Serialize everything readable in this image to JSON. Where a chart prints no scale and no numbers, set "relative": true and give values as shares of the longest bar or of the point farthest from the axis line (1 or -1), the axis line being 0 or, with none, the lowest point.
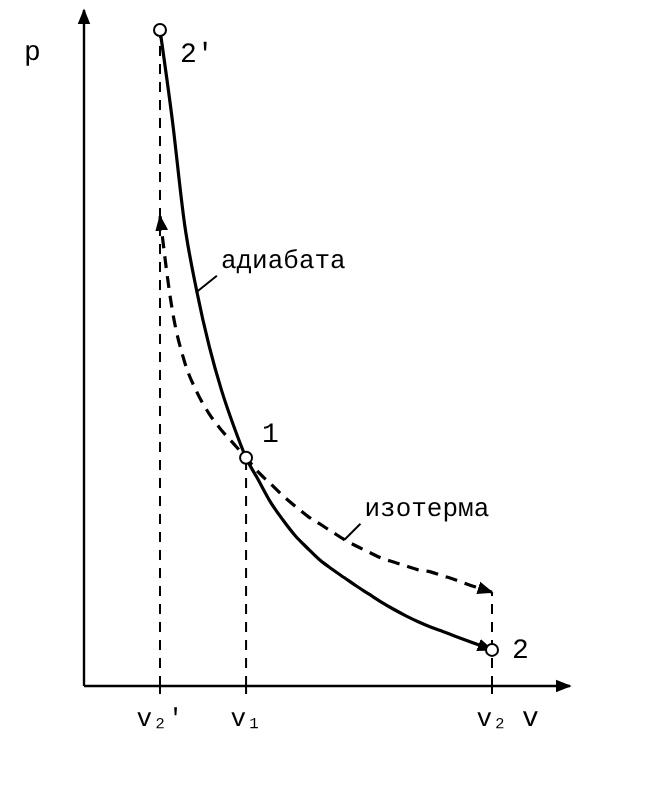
{
  "chart_data": {
    "type": "line",
    "relative": true,
    "xlabel": "v",
    "ylabel": "p",
    "categories": [
      "v₂′",
      null,
      null,
      null,
      null,
      null,
      null,
      "v₁",
      null,
      null,
      null,
      null,
      null,
      null,
      null,
      null,
      null,
      null,
      null,
      null,
      null,
      null,
      null,
      null,
      null,
      null,
      null,
      "v₂"
    ],
    "series": [
      {
        "name": "адиабата",
        "color": "#000000",
        "line_style": "solid",
        "values": [
          1.0,
          0.863,
          0.704,
          0.601,
          0.518,
          0.451,
          0.396,
          0.348,
          0.314,
          0.28,
          0.253,
          0.229,
          0.21,
          0.192,
          0.178,
          0.165,
          0.152,
          0.14,
          0.128,
          0.117,
          0.107,
          0.098,
          0.09,
          0.083,
          0.076,
          0.069,
          0.062,
          0.055
        ]
      },
      {
        "name": "изотерма",
        "color": "#000000",
        "line_style": "dashed",
        "values": [
          0.716,
          0.573,
          0.494,
          0.448,
          0.415,
          0.39,
          0.369,
          0.348,
          0.326,
          0.308,
          0.29,
          0.274,
          0.259,
          0.247,
          0.235,
          0.223,
          0.213,
          0.204,
          0.195,
          0.189,
          0.183,
          0.177,
          0.174,
          0.168,
          0.162,
          0.155,
          0.149,
          0.143
        ]
      }
    ],
    "ref_lines": [
      {
        "axis": "x",
        "value": "v₂′",
        "line_style": "dashed",
        "color": "#000000"
      },
      {
        "axis": "x",
        "value": "v₁",
        "line_style": "dashed",
        "color": "#000000"
      },
      {
        "axis": "x",
        "value": "v₂",
        "line_style": "dashed",
        "color": "#000000"
      }
    ],
    "annotations": [
      {
        "text": "2′",
        "x": "v₂′",
        "y": 1.0
      },
      {
        "text": "1",
        "x": "v₁",
        "y": 0.348
      },
      {
        "text": "2",
        "x": "v₂",
        "y": 0.055
      }
    ]
  }
}
